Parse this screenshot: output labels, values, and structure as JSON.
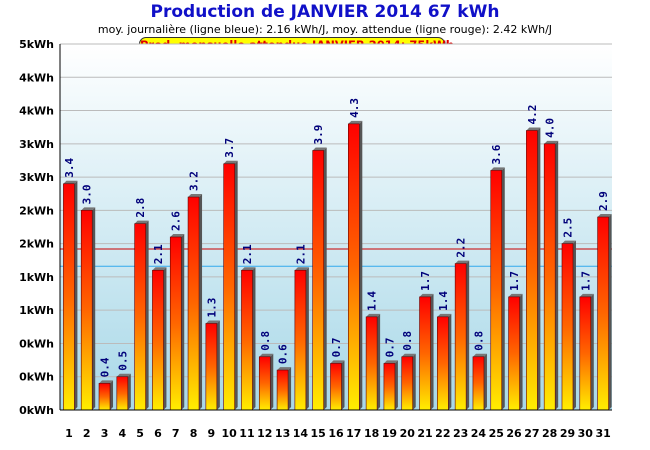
{
  "header": {
    "title": "Production de JANVIER 2014  67 kWh",
    "subtitle": "moy. journalière (ligne bleue): 2.16 kWh/J,   moy. attendue (ligne rouge): 2.42 kWh/J",
    "badge": "Prod. mensuelle attendue JANVIER 2014: 75kWh"
  },
  "chart_data": {
    "type": "bar",
    "title": "Production de JANVIER 2014  67 kWh",
    "categories": [
      "1",
      "2",
      "3",
      "4",
      "5",
      "6",
      "7",
      "8",
      "9",
      "10",
      "11",
      "12",
      "13",
      "14",
      "15",
      "16",
      "17",
      "18",
      "19",
      "20",
      "21",
      "22",
      "23",
      "24",
      "25",
      "26",
      "27",
      "28",
      "29",
      "30",
      "31"
    ],
    "values": [
      3.4,
      3.0,
      0.4,
      0.5,
      2.8,
      2.1,
      2.6,
      3.2,
      1.3,
      3.7,
      2.1,
      0.8,
      0.6,
      2.1,
      3.9,
      0.7,
      4.3,
      1.4,
      0.7,
      0.8,
      1.7,
      1.4,
      2.2,
      0.8,
      3.6,
      1.7,
      4.2,
      4.0,
      2.5,
      1.7,
      2.9
    ],
    "value_labels": [
      "3.4",
      "3.0",
      "0.4",
      "0.5",
      "2.8",
      "2.1",
      "2.6",
      "3.2",
      "1.3",
      "3.7",
      "2.1",
      "0.8",
      "0.6",
      "2.1",
      "3.9",
      "0.7",
      "4.3",
      "1.4",
      "0.7",
      "0.8",
      "1.7",
      "1.4",
      "2.2",
      "0.8",
      "3.6",
      "1.7",
      "4.2",
      "4.0",
      "2.5",
      "1.7",
      "2.9"
    ],
    "y_ticks": [
      "0kWh",
      "0kWh",
      "0kWh",
      "1kWh",
      "1kWh",
      "2kWh",
      "2kWh",
      "3kWh",
      "3kWh",
      "4kWh",
      "4kWh",
      "5kWh"
    ],
    "ylim": [
      0,
      5.5
    ],
    "reference_lines": [
      {
        "value": 2.16,
        "color": "#33aaee"
      },
      {
        "value": 2.42,
        "color": "#cc0000"
      }
    ],
    "grid": true
  }
}
